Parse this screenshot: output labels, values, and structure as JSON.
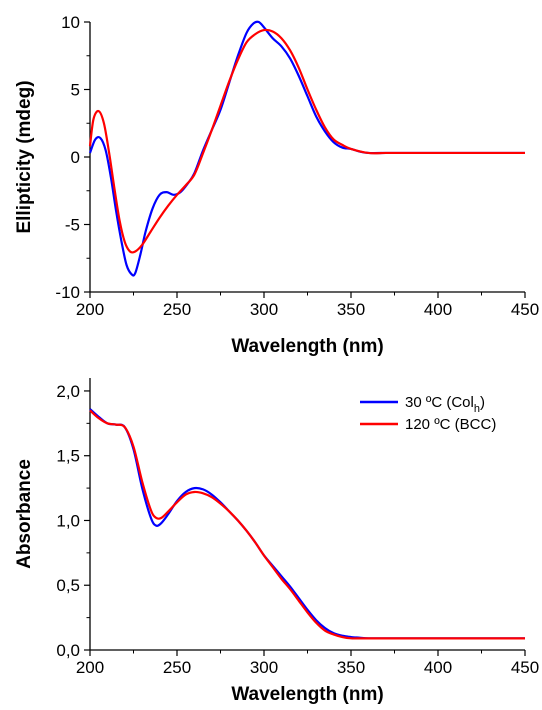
{
  "chart_data": [
    {
      "type": "line",
      "xlabel": "Wavelength (nm)",
      "ylabel": "Ellipticity (mdeg)",
      "xlim": [
        200,
        450
      ],
      "ylim": [
        -10,
        10
      ],
      "xticks": [
        200,
        250,
        300,
        350,
        400,
        450
      ],
      "yticks": [
        -10,
        -5,
        0,
        5,
        10
      ],
      "xtick_labels": [
        "200",
        "250",
        "300",
        "350",
        "400",
        "450"
      ],
      "ytick_labels": [
        "-10",
        "-5",
        "0",
        "5",
        "10"
      ],
      "legend": null,
      "grid": false,
      "series": [
        {
          "color": "#0000ff",
          "x": [
            200,
            203,
            206,
            209,
            212,
            215,
            218,
            221,
            224,
            226,
            229,
            232,
            236,
            240,
            244,
            248,
            252,
            256,
            260,
            265,
            270,
            275,
            280,
            285,
            290,
            294,
            297,
            300,
            305,
            310,
            315,
            320,
            325,
            330,
            335,
            340,
            345,
            350,
            355,
            360,
            370,
            380,
            390,
            400,
            410,
            420,
            430,
            440,
            450
          ],
          "y": [
            0.3,
            1.3,
            1.4,
            0.5,
            -1.5,
            -4.0,
            -6.2,
            -8.0,
            -8.7,
            -8.6,
            -7.2,
            -5.5,
            -3.8,
            -2.8,
            -2.6,
            -2.8,
            -2.6,
            -2.0,
            -1.2,
            0.5,
            2.0,
            3.5,
            5.5,
            7.5,
            9.2,
            9.9,
            10.0,
            9.6,
            8.8,
            8.2,
            7.3,
            6.0,
            4.5,
            3.0,
            1.9,
            1.1,
            0.7,
            0.6,
            0.4,
            0.3,
            0.3,
            0.3,
            0.3,
            0.3,
            0.3,
            0.3,
            0.3,
            0.3,
            0.3
          ]
        },
        {
          "color": "#ff0000",
          "x": [
            200,
            202,
            205,
            208,
            211,
            214,
            217,
            220,
            223,
            226,
            230,
            235,
            240,
            245,
            250,
            255,
            260,
            265,
            270,
            275,
            280,
            285,
            290,
            295,
            300,
            305,
            310,
            315,
            320,
            325,
            330,
            335,
            340,
            345,
            350,
            360,
            370,
            380,
            390,
            400,
            410,
            420,
            430,
            440,
            450
          ],
          "y": [
            0.8,
            2.8,
            3.4,
            2.5,
            0.3,
            -2.3,
            -4.7,
            -6.3,
            -7.0,
            -7.0,
            -6.5,
            -5.5,
            -4.5,
            -3.6,
            -2.8,
            -2.1,
            -1.3,
            0.3,
            2.0,
            3.8,
            5.6,
            7.2,
            8.5,
            9.1,
            9.4,
            9.3,
            8.8,
            7.9,
            6.6,
            5.0,
            3.5,
            2.2,
            1.3,
            0.9,
            0.6,
            0.3,
            0.3,
            0.3,
            0.3,
            0.3,
            0.3,
            0.3,
            0.3,
            0.3,
            0.3
          ]
        }
      ]
    },
    {
      "type": "line",
      "xlabel": "Wavelength (nm)",
      "ylabel": "Absorbance",
      "xlim": [
        200,
        450
      ],
      "ylim": [
        0,
        2.1
      ],
      "xticks": [
        200,
        250,
        300,
        350,
        400,
        450
      ],
      "yticks": [
        0,
        0.5,
        1.0,
        1.5,
        2.0
      ],
      "xtick_labels": [
        "200",
        "250",
        "300",
        "350",
        "400",
        "450"
      ],
      "ytick_labels": [
        "0,0",
        "0,5",
        "1,0",
        "1,5",
        "2,0"
      ],
      "legend": "top-right",
      "grid": false,
      "series": [
        {
          "name": "30 ºC (Colh)",
          "color": "#0000ff",
          "x": [
            200,
            205,
            210,
            215,
            220,
            225,
            230,
            235,
            238,
            241,
            245,
            250,
            255,
            260,
            265,
            270,
            275,
            280,
            285,
            290,
            295,
            300,
            305,
            310,
            315,
            320,
            325,
            330,
            335,
            340,
            345,
            350,
            355,
            360,
            370,
            380,
            390,
            400,
            410,
            420,
            430,
            440,
            450
          ],
          "y": [
            1.86,
            1.8,
            1.75,
            1.74,
            1.72,
            1.55,
            1.25,
            1.02,
            0.96,
            0.98,
            1.05,
            1.15,
            1.22,
            1.25,
            1.24,
            1.2,
            1.14,
            1.07,
            1.0,
            0.92,
            0.83,
            0.73,
            0.65,
            0.57,
            0.49,
            0.4,
            0.31,
            0.23,
            0.17,
            0.13,
            0.11,
            0.1,
            0.095,
            0.09,
            0.09,
            0.09,
            0.09,
            0.09,
            0.09,
            0.09,
            0.09,
            0.09,
            0.09
          ]
        },
        {
          "name": "120 ºC (BCC)",
          "color": "#ff0000",
          "x": [
            200,
            205,
            210,
            215,
            220,
            225,
            230,
            235,
            238,
            241,
            245,
            250,
            255,
            260,
            265,
            270,
            275,
            280,
            285,
            290,
            295,
            300,
            305,
            310,
            315,
            320,
            325,
            330,
            335,
            340,
            345,
            350,
            355,
            360,
            370,
            380,
            390,
            400,
            410,
            420,
            430,
            440,
            450
          ],
          "y": [
            1.85,
            1.79,
            1.75,
            1.74,
            1.72,
            1.57,
            1.3,
            1.08,
            1.02,
            1.02,
            1.07,
            1.14,
            1.2,
            1.22,
            1.21,
            1.18,
            1.13,
            1.07,
            1.0,
            0.92,
            0.83,
            0.73,
            0.64,
            0.55,
            0.47,
            0.38,
            0.29,
            0.21,
            0.15,
            0.12,
            0.1,
            0.09,
            0.09,
            0.09,
            0.09,
            0.09,
            0.09,
            0.09,
            0.09,
            0.09,
            0.09,
            0.09,
            0.09
          ]
        }
      ]
    }
  ]
}
